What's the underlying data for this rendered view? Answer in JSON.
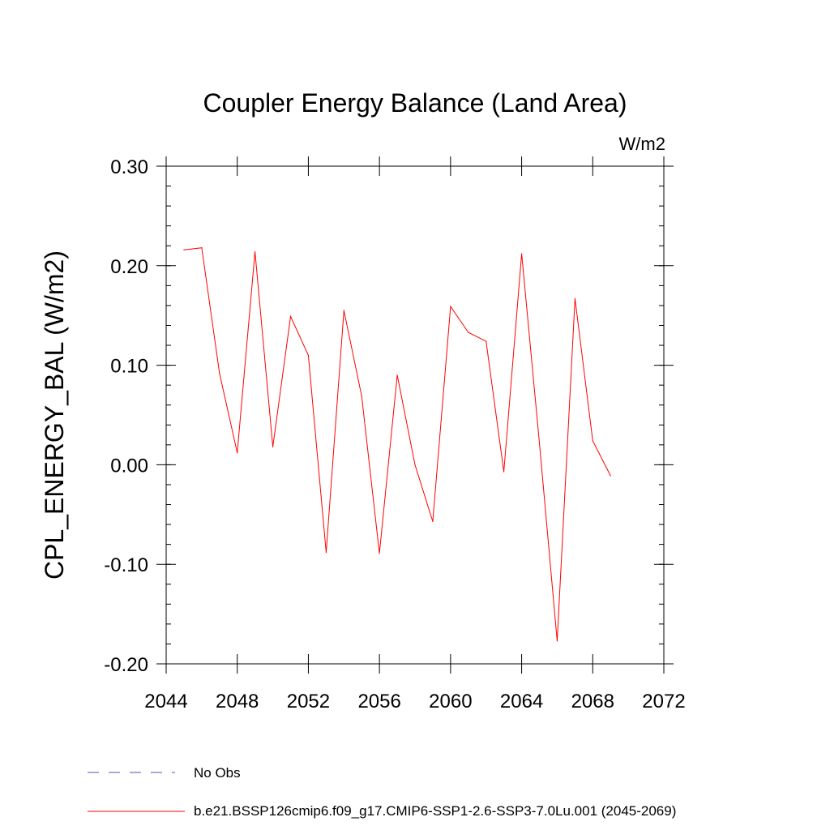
{
  "chart_data": {
    "type": "line",
    "title": "Coupler Energy Balance (Land Area)",
    "units_label": "W/m2",
    "ylabel": "CPL_ENERGY_BAL  (W/m2)",
    "xlabel": "",
    "xlim": [
      2044,
      2072
    ],
    "ylim": [
      -0.2,
      0.3
    ],
    "x_ticks": [
      2044,
      2048,
      2052,
      2056,
      2060,
      2064,
      2068,
      2072
    ],
    "x_tick_labels": [
      "2044",
      "2048",
      "2052",
      "2056",
      "2060",
      "2064",
      "2068",
      "2072"
    ],
    "y_ticks": [
      -0.2,
      -0.1,
      0.0,
      0.1,
      0.2,
      0.3
    ],
    "y_tick_labels": [
      "-0.20",
      "-0.10",
      "0.00",
      "0.10",
      "0.20",
      "0.30"
    ],
    "grid": false,
    "legend_position": "bottom",
    "series": [
      {
        "name": "b.e21.BSSP126cmip6.f09_g17.CMIP6-SSP1-2.6-SSP3-7.0Lu.001 (2045-2069)",
        "color": "#ff0000",
        "style": "solid",
        "x": [
          2045,
          2046,
          2047,
          2048,
          2049,
          2050,
          2051,
          2052,
          2053,
          2054,
          2055,
          2056,
          2057,
          2058,
          2059,
          2060,
          2061,
          2062,
          2063,
          2064,
          2065,
          2066,
          2067,
          2068,
          2069
        ],
        "y": [
          0.216,
          0.218,
          0.092,
          0.012,
          0.214,
          0.018,
          0.149,
          0.11,
          -0.088,
          0.155,
          0.069,
          -0.089,
          0.09,
          0.0,
          -0.057,
          0.159,
          0.133,
          0.124,
          -0.007,
          0.212,
          0.022,
          -0.177,
          0.167,
          0.024,
          -0.011
        ]
      }
    ],
    "legend": [
      {
        "label": "No Obs",
        "color": "#5a4fa8",
        "style": "dashed"
      },
      {
        "label": "b.e21.BSSP126cmip6.f09_g17.CMIP6-SSP1-2.6-SSP3-7.0Lu.001 (2045-2069)",
        "color": "#ff0000",
        "style": "solid"
      }
    ]
  }
}
